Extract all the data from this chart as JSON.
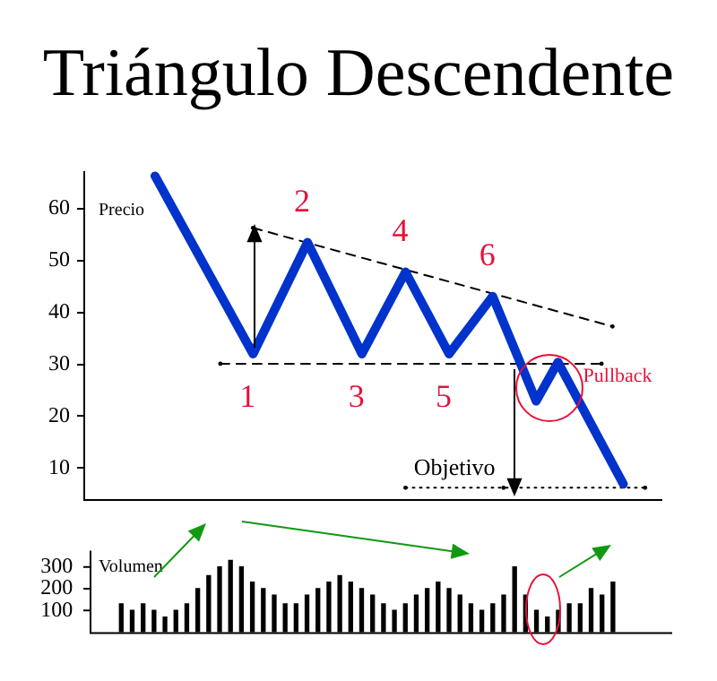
{
  "chart_data": [
    {
      "type": "line",
      "title": "Triángulo Descendente",
      "ylabel": "Precio",
      "categories": [
        null,
        null,
        null,
        null,
        null,
        null,
        null,
        null,
        null,
        null,
        null,
        null,
        null,
        null,
        null,
        null,
        null,
        null,
        null,
        null,
        null,
        null,
        null,
        null,
        null,
        null,
        null,
        null,
        null,
        null,
        null,
        null,
        null,
        null,
        null,
        null,
        null,
        null,
        null,
        null,
        null,
        null,
        null,
        null,
        null,
        null,
        null,
        null,
        null,
        null,
        null,
        null,
        null
      ],
      "ylim": [
        3.9,
        67
      ],
      "yticks": [
        10,
        20,
        30,
        40,
        50,
        60
      ],
      "tick_labels": "y",
      "grid": false,
      "legend": false,
      "marker": "none",
      "series": [
        {
          "color": "#0033cc",
          "values": [
            null,
            null,
            null,
            null,
            null,
            null,
            66.3,
            null,
            null,
            null,
            null,
            null,
            null,
            null,
            null,
            32,
            null,
            null,
            null,
            null,
            53.5,
            null,
            null,
            null,
            null,
            32,
            null,
            null,
            null,
            47.8,
            null,
            null,
            null,
            32,
            null,
            null,
            null,
            43.1,
            null,
            null,
            null,
            22.9,
            null,
            30.4,
            null,
            null,
            null,
            null,
            null,
            6.9,
            null,
            null,
            null
          ]
        },
        {
          "color": "#000000",
          "line_style": "dashed",
          "values": [
            null,
            null,
            null,
            null,
            null,
            null,
            null,
            null,
            null,
            null,
            null,
            null,
            null,
            null,
            null,
            56.3,
            null,
            null,
            null,
            null,
            null,
            null,
            null,
            null,
            null,
            null,
            null,
            null,
            null,
            null,
            null,
            null,
            null,
            null,
            null,
            null,
            null,
            null,
            null,
            null,
            null,
            null,
            null,
            null,
            null,
            null,
            null,
            null,
            37.3,
            null,
            null,
            null,
            null
          ]
        },
        {
          "color": "#000000",
          "line_style": "dashed",
          "values": [
            null,
            null,
            null,
            null,
            null,
            null,
            null,
            null,
            null,
            null,
            null,
            null,
            30.1,
            null,
            null,
            null,
            null,
            null,
            null,
            null,
            null,
            null,
            null,
            null,
            null,
            null,
            null,
            null,
            null,
            null,
            null,
            null,
            null,
            null,
            null,
            null,
            null,
            null,
            null,
            null,
            null,
            null,
            null,
            null,
            null,
            null,
            null,
            30.1,
            null,
            null,
            null,
            null,
            null
          ]
        },
        {
          "color": "#000000",
          "line_style": "dotted",
          "values": [
            null,
            null,
            null,
            null,
            null,
            null,
            null,
            null,
            null,
            null,
            null,
            null,
            null,
            null,
            null,
            null,
            null,
            null,
            null,
            null,
            null,
            null,
            null,
            null,
            null,
            null,
            null,
            null,
            null,
            6.2,
            null,
            null,
            null,
            null,
            null,
            null,
            null,
            null,
            6.2,
            null,
            null,
            null,
            null,
            null,
            null,
            null,
            null,
            null,
            null,
            null,
            null,
            6.2,
            null
          ]
        }
      ],
      "annotations": [
        "1",
        "2",
        "3",
        "4",
        "5",
        "6",
        "Pullback",
        "Objetivo"
      ]
    },
    {
      "type": "bar",
      "ylabel": "Volumen",
      "categories": [
        null,
        null,
        null,
        null,
        null,
        null,
        null,
        null,
        null,
        null,
        null,
        null,
        null,
        null,
        null,
        null,
        null,
        null,
        null,
        null,
        null,
        null,
        null,
        null,
        null,
        null,
        null,
        null,
        null,
        null,
        null,
        null,
        null,
        null,
        null,
        null,
        null,
        null,
        null,
        null,
        null,
        null,
        null,
        null,
        null,
        null
      ],
      "ylim": [
        0,
        375
      ],
      "yticks": [
        100,
        200,
        300
      ],
      "tick_labels": "y",
      "grid": false,
      "legend": false,
      "color": "#000000",
      "values": [
        130,
        100,
        130,
        100,
        70,
        100,
        130,
        200,
        260,
        300,
        330,
        300,
        230,
        200,
        170,
        130,
        130,
        170,
        200,
        230,
        260,
        230,
        200,
        170,
        130,
        100,
        130,
        170,
        200,
        230,
        200,
        170,
        130,
        100,
        130,
        170,
        300,
        170,
        100,
        70,
        100,
        130,
        130,
        200,
        170,
        230
      ]
    }
  ]
}
